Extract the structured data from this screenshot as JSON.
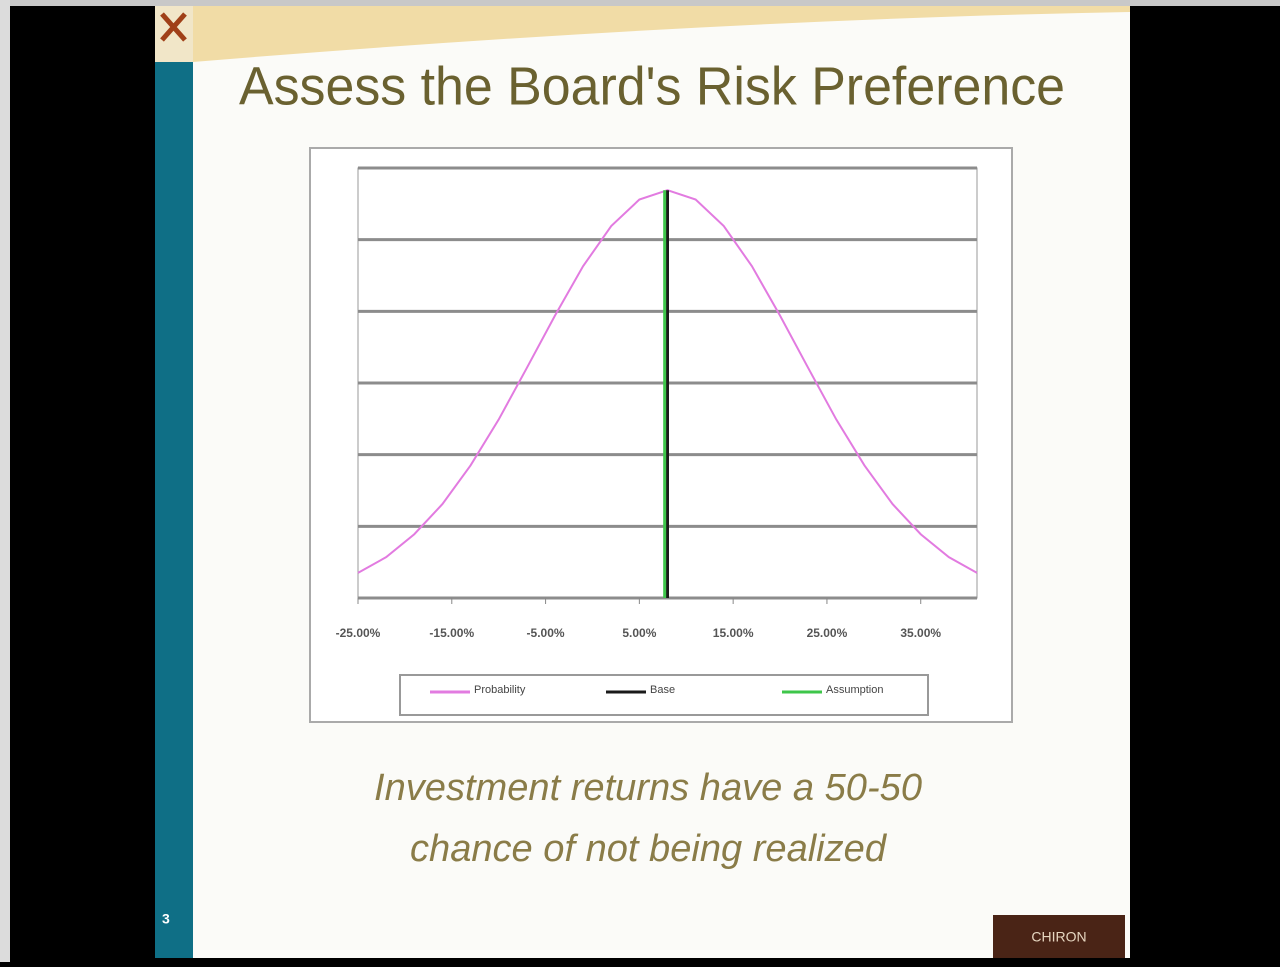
{
  "slide": {
    "title": "Assess the Board's Risk Preference",
    "caption_lines": [
      "Investment returns have a 50-50",
      "chance of not being realized"
    ],
    "logo": "CHIRON",
    "number": "3"
  },
  "chart_data": {
    "type": "line",
    "xlim": [
      -25,
      41
    ],
    "xticks": [
      {
        "value": -25,
        "label": "-25.00%"
      },
      {
        "value": -15,
        "label": "-15.00%"
      },
      {
        "value": -5,
        "label": "-5.00%"
      },
      {
        "value": 5,
        "label": "5.00%"
      },
      {
        "value": 15,
        "label": "15.00%"
      },
      {
        "value": 25,
        "label": "25.00%"
      },
      {
        "value": 35,
        "label": "35.00%"
      }
    ],
    "ylim": [
      0,
      6
    ],
    "yticks": [
      0,
      1,
      2,
      3,
      4,
      5,
      6
    ],
    "grid": true,
    "legend": "bottom",
    "series": [
      {
        "name": "Probability",
        "color": "#e27be0",
        "x": [
          -25,
          -22,
          -19,
          -16,
          -13,
          -10,
          -7,
          -4,
          -1,
          2,
          5,
          8,
          11,
          14,
          17,
          20,
          23,
          26,
          29,
          32,
          35,
          38,
          41
        ],
        "values": [
          0.35,
          0.57,
          0.89,
          1.31,
          1.85,
          2.49,
          3.21,
          3.94,
          4.63,
          5.19,
          5.56,
          5.69,
          5.56,
          5.19,
          4.63,
          3.94,
          3.21,
          2.49,
          1.85,
          1.31,
          0.89,
          0.57,
          0.35
        ]
      },
      {
        "name": "Base",
        "color": "#1a1a1a",
        "x": [
          8,
          8
        ],
        "values": [
          0,
          5.69
        ]
      },
      {
        "name": "Assumption",
        "color": "#3ec64a",
        "x": [
          7.7,
          7.7
        ],
        "values": [
          0,
          5.69
        ]
      }
    ]
  }
}
